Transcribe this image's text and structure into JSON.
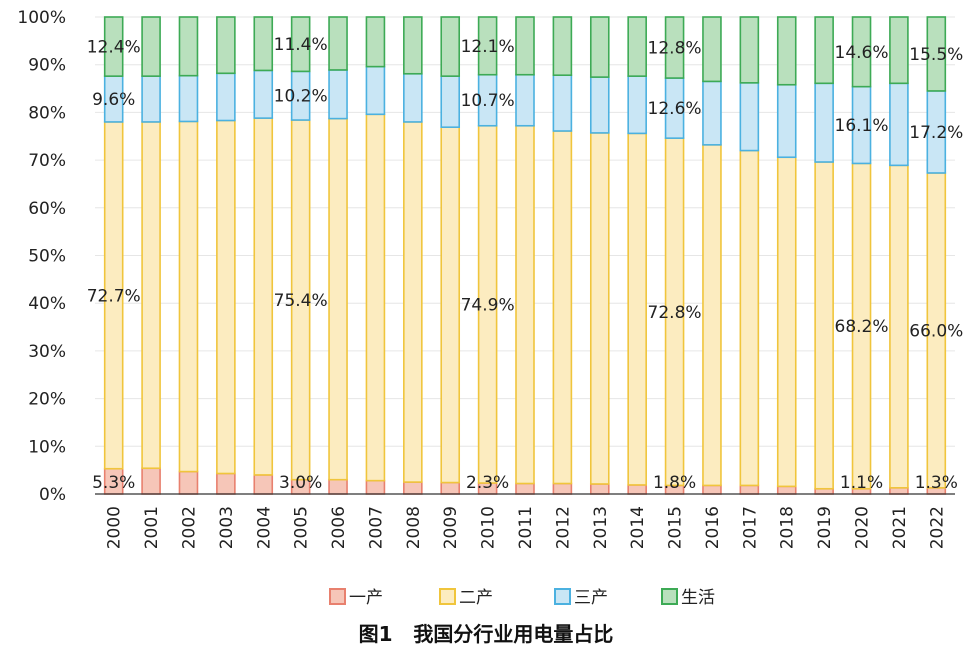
{
  "chart_data": {
    "type": "bar",
    "stacked": true,
    "caption": "图1   我国分行业用电量占比",
    "ylim": [
      0,
      100
    ],
    "y_ticks": [
      "0%",
      "10%",
      "20%",
      "30%",
      "40%",
      "50%",
      "60%",
      "70%",
      "80%",
      "90%",
      "100%"
    ],
    "categories": [
      "2000",
      "2001",
      "2002",
      "2003",
      "2004",
      "2005",
      "2006",
      "2007",
      "2008",
      "2009",
      "2010",
      "2011",
      "2012",
      "2013",
      "2014",
      "2015",
      "2016",
      "2017",
      "2018",
      "2019",
      "2020",
      "2021",
      "2022"
    ],
    "legend_position": "bottom",
    "series": [
      {
        "name": "一产",
        "color": "#e8806e",
        "fill": "#f6c6b8",
        "values": [
          5.3,
          5.4,
          4.7,
          4.3,
          4.0,
          3.0,
          3.0,
          2.8,
          2.5,
          2.4,
          2.3,
          2.2,
          2.2,
          2.1,
          1.9,
          1.8,
          1.8,
          1.8,
          1.6,
          1.1,
          1.1,
          1.3,
          1.3
        ]
      },
      {
        "name": "二产",
        "color": "#f0c53c",
        "fill": "#fcecc0",
        "values": [
          72.7,
          72.6,
          73.4,
          74.0,
          74.8,
          75.4,
          75.7,
          76.8,
          75.5,
          74.5,
          74.9,
          75.0,
          73.9,
          73.6,
          73.7,
          72.8,
          71.4,
          70.2,
          69.0,
          68.5,
          68.2,
          67.6,
          66.0
        ]
      },
      {
        "name": "三产",
        "color": "#4bb1e0",
        "fill": "#c9e6f5",
        "values": [
          9.6,
          9.6,
          9.6,
          9.9,
          10.0,
          10.2,
          10.2,
          10.0,
          10.1,
          10.7,
          10.7,
          10.7,
          11.7,
          11.7,
          12.0,
          12.6,
          13.3,
          14.2,
          15.2,
          16.5,
          16.1,
          17.2,
          17.2
        ]
      },
      {
        "name": "生活",
        "color": "#3daa55",
        "fill": "#b9e0bd",
        "values": [
          12.4,
          12.4,
          12.3,
          11.8,
          11.2,
          11.4,
          11.1,
          10.4,
          11.9,
          12.4,
          12.1,
          12.1,
          12.2,
          12.6,
          12.4,
          12.8,
          13.5,
          13.8,
          14.2,
          13.9,
          14.6,
          13.9,
          15.5
        ]
      }
    ],
    "data_labels": [
      {
        "text": "5.3%",
        "category": "2000",
        "series": "一产"
      },
      {
        "text": "72.7%",
        "category": "2000",
        "series": "二产"
      },
      {
        "text": "9.6%",
        "category": "2000",
        "series": "三产"
      },
      {
        "text": "12.4%",
        "category": "2000",
        "series": "生活"
      },
      {
        "text": "3.0%",
        "category": "2005",
        "series": "一产"
      },
      {
        "text": "75.4%",
        "category": "2005",
        "series": "二产"
      },
      {
        "text": "10.2%",
        "category": "2005",
        "series": "三产"
      },
      {
        "text": "11.4%",
        "category": "2005",
        "series": "生活"
      },
      {
        "text": "2.3%",
        "category": "2010",
        "series": "一产"
      },
      {
        "text": "74.9%",
        "category": "2010",
        "series": "二产"
      },
      {
        "text": "10.7%",
        "category": "2010",
        "series": "三产"
      },
      {
        "text": "12.1%",
        "category": "2010",
        "series": "生活"
      },
      {
        "text": "1.8%",
        "category": "2015",
        "series": "一产"
      },
      {
        "text": "72.8%",
        "category": "2015",
        "series": "二产"
      },
      {
        "text": "12.6%",
        "category": "2015",
        "series": "三产"
      },
      {
        "text": "12.8%",
        "category": "2015",
        "series": "生活"
      },
      {
        "text": "1.1%",
        "category": "2020",
        "series": "一产"
      },
      {
        "text": "68.2%",
        "category": "2020",
        "series": "二产"
      },
      {
        "text": "16.1%",
        "category": "2020",
        "series": "三产"
      },
      {
        "text": "14.6%",
        "category": "2020",
        "series": "生活"
      },
      {
        "text": "1.3%",
        "category": "2022",
        "series": "一产"
      },
      {
        "text": "66.0%",
        "category": "2022",
        "series": "二产"
      },
      {
        "text": "17.2%",
        "category": "2022",
        "series": "三产"
      },
      {
        "text": "15.5%",
        "category": "2022",
        "series": "生活"
      }
    ]
  }
}
